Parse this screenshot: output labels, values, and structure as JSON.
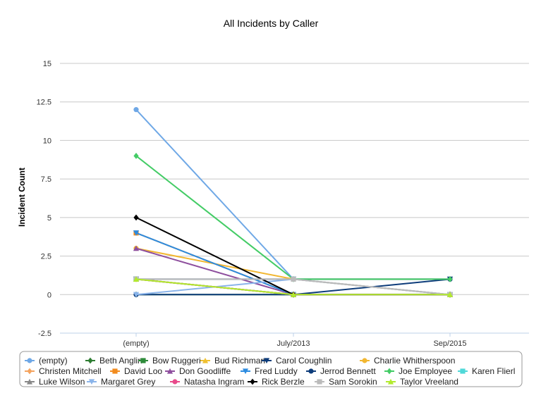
{
  "chart_data": {
    "type": "line",
    "title": "All Incidents by Caller",
    "ylabel": "Incident Count",
    "xlabel": "",
    "categories": [
      "(empty)",
      "July/2013",
      "Sep/2015"
    ],
    "ylim": [
      -2.5,
      15
    ],
    "yticks": [
      "15",
      "12.5",
      "10",
      "7.5",
      "5",
      "2.5",
      "0",
      "-2.5"
    ],
    "ytick_values": [
      15,
      12.5,
      10,
      7.5,
      5,
      2.5,
      0,
      -2.5
    ],
    "grid": true,
    "legend_position": "bottom",
    "series": [
      {
        "name": "(empty)",
        "values": [
          12,
          1,
          0
        ],
        "color": "#6fa8e6",
        "marker": "circle"
      },
      {
        "name": "Beth Anglin",
        "values": [
          0,
          0,
          0
        ],
        "color": "#2e7d32",
        "marker": "diamond"
      },
      {
        "name": "Bow Ruggeri",
        "values": [
          1,
          0,
          0
        ],
        "color": "#2e8b3a",
        "marker": "square"
      },
      {
        "name": "Bud Richman",
        "values": [
          1,
          0,
          0
        ],
        "color": "#f0c030",
        "marker": "triangle-up"
      },
      {
        "name": "Carol Coughlin",
        "values": [
          1,
          1,
          1
        ],
        "color": "#0d3c7a",
        "marker": "triangle-down"
      },
      {
        "name": "Charlie Whitherspoon",
        "values": [
          3,
          1,
          0
        ],
        "color": "#f2b731",
        "marker": "circle"
      },
      {
        "name": "Christen Mitchell",
        "values": [
          1,
          0,
          0
        ],
        "color": "#f4a460",
        "marker": "diamond"
      },
      {
        "name": "David Loo",
        "values": [
          4,
          0,
          0
        ],
        "color": "#f28c1e",
        "marker": "square"
      },
      {
        "name": "Don Goodliffe",
        "values": [
          3,
          0,
          0
        ],
        "color": "#8e4f9e",
        "marker": "triangle-up"
      },
      {
        "name": "Fred Luddy",
        "values": [
          4,
          0,
          0
        ],
        "color": "#2c8be0",
        "marker": "triangle-down"
      },
      {
        "name": "Jerrod Bennett",
        "values": [
          0,
          0,
          1
        ],
        "color": "#0d3c7a",
        "marker": "circle"
      },
      {
        "name": "Joe Employee",
        "values": [
          9,
          1,
          1
        ],
        "color": "#44cc66",
        "marker": "diamond"
      },
      {
        "name": "Karen Flierl",
        "values": [
          1,
          0,
          0
        ],
        "color": "#4fd8d8",
        "marker": "square"
      },
      {
        "name": "Luke Wilson",
        "values": [
          1,
          0,
          0
        ],
        "color": "#888888",
        "marker": "triangle-up"
      },
      {
        "name": "Margaret Grey",
        "values": [
          0,
          1,
          0
        ],
        "color": "#8ab4ea",
        "marker": "triangle-down"
      },
      {
        "name": "Natasha Ingram",
        "values": [
          1,
          0,
          0
        ],
        "color": "#e84a8a",
        "marker": "circle"
      },
      {
        "name": "Rick Berzle",
        "values": [
          5,
          0,
          0
        ],
        "color": "#000000",
        "marker": "diamond"
      },
      {
        "name": "Sam Sorokin",
        "values": [
          1,
          1,
          0
        ],
        "color": "#bbbbbb",
        "marker": "square"
      },
      {
        "name": "Taylor Vreeland",
        "values": [
          1,
          0,
          0
        ],
        "color": "#b2ea2e",
        "marker": "triangle-up"
      }
    ]
  }
}
